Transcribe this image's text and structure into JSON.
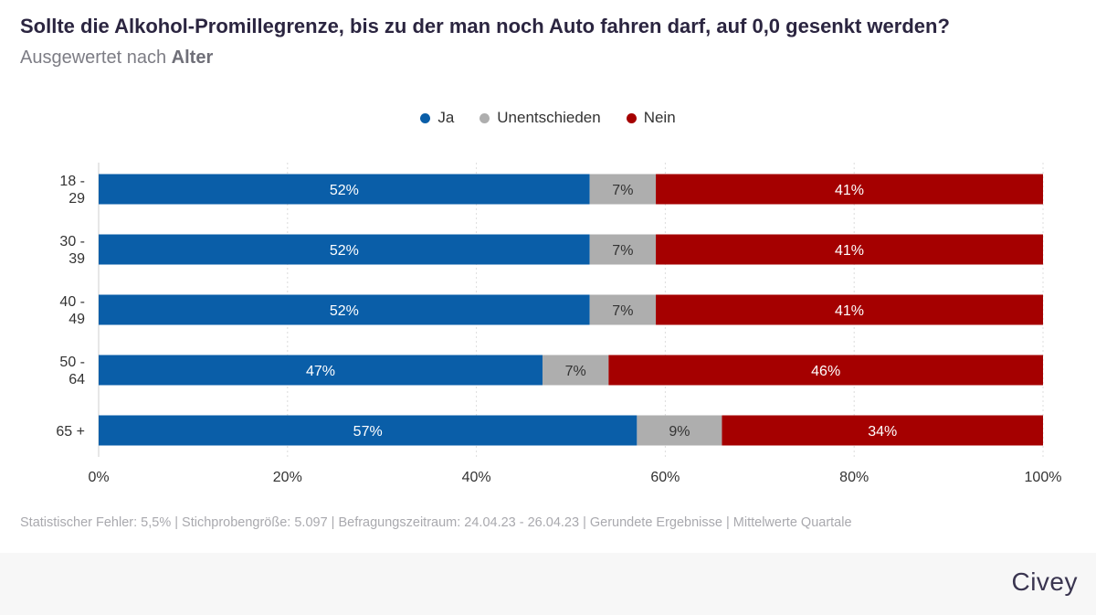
{
  "header": {
    "title": "Sollte die Alkohol-Promillegrenze, bis zu der man noch Auto fahren darf, auf 0,0 gesenkt werden?",
    "subtitle_prefix": "Ausgewertet nach",
    "subtitle_bold": "Alter"
  },
  "chart_data": {
    "type": "bar",
    "orientation": "horizontal",
    "stacked": true,
    "categories": [
      [
        "18 -",
        "29"
      ],
      [
        "30 -",
        "39"
      ],
      [
        "40 -",
        "49"
      ],
      [
        "50 -",
        "64"
      ],
      [
        "65 +"
      ]
    ],
    "series": [
      {
        "name": "Ja",
        "color": "#0a5ea8",
        "values": [
          52,
          52,
          52,
          47,
          57
        ],
        "label_color": "#ffffff"
      },
      {
        "name": "Unentschieden",
        "color": "#aeaeae",
        "values": [
          7,
          7,
          7,
          7,
          9
        ],
        "label_color": "#333333"
      },
      {
        "name": "Nein",
        "color": "#a50000",
        "values": [
          41,
          41,
          41,
          46,
          34
        ],
        "label_color": "#ffffff"
      }
    ],
    "xlim": [
      0,
      100
    ],
    "xticks": [
      "0%",
      "20%",
      "40%",
      "60%",
      "80%",
      "100%"
    ],
    "grid": true,
    "legend": "top-center"
  },
  "footer": {
    "note": "Statistischer Fehler: 5,5% | Stichprobengröße: 5.097 | Befragungszeitraum: 24.04.23 - 26.04.23 | Gerundete Ergebnisse | Mittelwerte Quartale",
    "brand": "Civey"
  }
}
